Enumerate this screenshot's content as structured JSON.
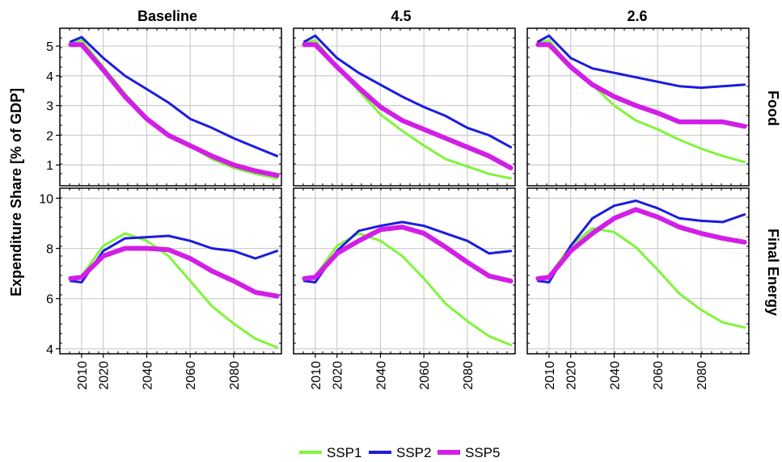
{
  "chart_data": {
    "type": "line",
    "ylabel": "Expenditure Share [% of GDP]",
    "x": [
      2005,
      2010,
      2020,
      2030,
      2040,
      2050,
      2060,
      2070,
      2080,
      2090,
      2100
    ],
    "xlim": [
      2000,
      2102
    ],
    "xticks": [
      2010,
      2020,
      2040,
      2060,
      2080
    ],
    "columns": [
      "Baseline",
      "4.5",
      "2.6"
    ],
    "rows": [
      {
        "label": "Food",
        "ylim": [
          0.3,
          5.6
        ],
        "yticks": [
          1,
          2,
          3,
          4,
          5
        ]
      },
      {
        "label": "Final Energy",
        "ylim": [
          3.8,
          10.4
        ],
        "yticks": [
          4,
          6,
          8,
          10
        ]
      }
    ],
    "legend": {
      "position": "bottom"
    },
    "grid": true,
    "colors": {
      "SSP1": "#7ff53a",
      "SSP2": "#1c1ce0",
      "SSP5": "#d21ee6"
    },
    "panels": [
      {
        "row": "Food",
        "col": "Baseline",
        "series": [
          {
            "name": "SSP1",
            "values": [
              5.1,
              5.2,
              4.3,
              3.4,
              2.6,
              2.05,
              1.65,
              1.2,
              0.9,
              0.7,
              0.55
            ]
          },
          {
            "name": "SSP2",
            "values": [
              5.15,
              5.3,
              4.6,
              4.0,
              3.55,
              3.1,
              2.55,
              2.25,
              1.9,
              1.6,
              1.3
            ]
          },
          {
            "name": "SSP5",
            "values": [
              5.05,
              5.05,
              4.2,
              3.3,
              2.55,
              2.0,
              1.65,
              1.3,
              1.0,
              0.8,
              0.65
            ]
          }
        ]
      },
      {
        "row": "Food",
        "col": "4.5",
        "series": [
          {
            "name": "SSP1",
            "values": [
              5.1,
              5.2,
              4.3,
              3.5,
              2.7,
              2.15,
              1.65,
              1.2,
              0.95,
              0.7,
              0.55
            ]
          },
          {
            "name": "SSP2",
            "values": [
              5.15,
              5.35,
              4.6,
              4.1,
              3.7,
              3.3,
              2.95,
              2.65,
              2.25,
              2.0,
              1.6
            ]
          },
          {
            "name": "SSP5",
            "values": [
              5.05,
              5.05,
              4.3,
              3.6,
              2.95,
              2.5,
              2.2,
              1.9,
              1.6,
              1.3,
              0.9
            ]
          }
        ]
      },
      {
        "row": "Food",
        "col": "2.6",
        "series": [
          {
            "name": "SSP1",
            "values": [
              5.1,
              5.2,
              4.3,
              3.7,
              3.0,
              2.5,
              2.2,
              1.85,
              1.55,
              1.3,
              1.1
            ]
          },
          {
            "name": "SSP2",
            "values": [
              5.15,
              5.35,
              4.6,
              4.25,
              4.1,
              3.95,
              3.8,
              3.65,
              3.6,
              3.65,
              3.7
            ]
          },
          {
            "name": "SSP5",
            "values": [
              5.05,
              5.05,
              4.3,
              3.7,
              3.3,
              3.0,
              2.75,
              2.45,
              2.45,
              2.45,
              2.3
            ]
          }
        ]
      },
      {
        "row": "Final Energy",
        "col": "Baseline",
        "series": [
          {
            "name": "SSP1",
            "values": [
              6.8,
              6.9,
              8.1,
              8.6,
              8.3,
              7.7,
              6.7,
              5.7,
              5.0,
              4.4,
              4.05
            ]
          },
          {
            "name": "SSP2",
            "values": [
              6.7,
              6.65,
              7.9,
              8.4,
              8.45,
              8.5,
              8.3,
              8.0,
              7.9,
              7.6,
              7.9
            ]
          },
          {
            "name": "SSP5",
            "values": [
              6.8,
              6.85,
              7.7,
              8.0,
              8.0,
              7.95,
              7.6,
              7.1,
              6.7,
              6.25,
              6.1
            ]
          }
        ]
      },
      {
        "row": "Final Energy",
        "col": "4.5",
        "series": [
          {
            "name": "SSP1",
            "values": [
              6.8,
              6.9,
              8.1,
              8.6,
              8.3,
              7.7,
              6.8,
              5.8,
              5.1,
              4.5,
              4.15
            ]
          },
          {
            "name": "SSP2",
            "values": [
              6.7,
              6.65,
              7.9,
              8.7,
              8.9,
              9.05,
              8.9,
              8.6,
              8.3,
              7.8,
              7.9
            ]
          },
          {
            "name": "SSP5",
            "values": [
              6.8,
              6.85,
              7.8,
              8.3,
              8.75,
              8.85,
              8.6,
              8.05,
              7.45,
              6.9,
              6.7
            ]
          }
        ]
      },
      {
        "row": "Final Energy",
        "col": "2.6",
        "series": [
          {
            "name": "SSP1",
            "values": [
              6.8,
              6.9,
              8.1,
              8.8,
              8.65,
              8.05,
              7.15,
              6.2,
              5.55,
              5.05,
              4.85
            ]
          },
          {
            "name": "SSP2",
            "values": [
              6.7,
              6.65,
              8.1,
              9.2,
              9.7,
              9.9,
              9.6,
              9.2,
              9.1,
              9.05,
              9.35
            ]
          },
          {
            "name": "SSP5",
            "values": [
              6.8,
              6.85,
              7.9,
              8.6,
              9.2,
              9.55,
              9.25,
              8.85,
              8.6,
              8.4,
              8.25
            ]
          }
        ]
      }
    ]
  }
}
